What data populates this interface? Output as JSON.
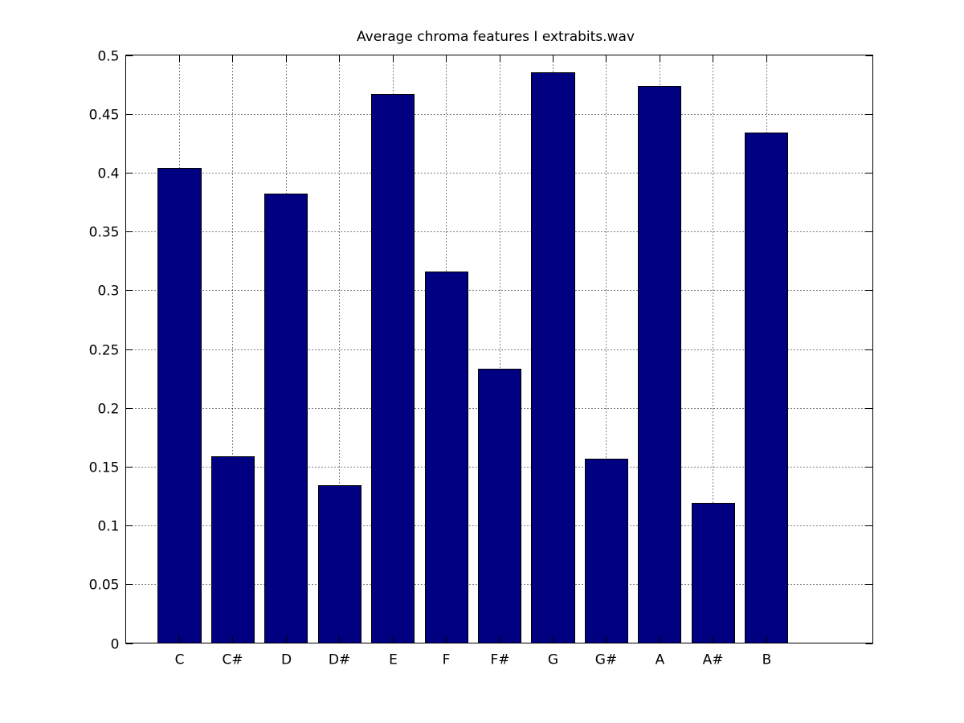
{
  "chart_data": {
    "type": "bar",
    "title": "Average chroma features I extrabits.wav",
    "xlabel": "",
    "ylabel": "",
    "categories": [
      "C",
      "C#",
      "D",
      "D#",
      "E",
      "F",
      "F#",
      "G",
      "G#",
      "A",
      "A#",
      "B"
    ],
    "values": [
      0.404,
      0.159,
      0.382,
      0.134,
      0.467,
      0.316,
      0.233,
      0.485,
      0.157,
      0.474,
      0.119,
      0.434
    ],
    "ylim": [
      0,
      0.5
    ],
    "xlim": [
      0,
      14
    ],
    "yticks": [
      0,
      0.05,
      0.1,
      0.15,
      0.2,
      0.25,
      0.3,
      0.35,
      0.4,
      0.45,
      0.5
    ],
    "ytick_labels": [
      "0",
      "0.05",
      "0.1",
      "0.15",
      "0.2",
      "0.25",
      "0.3",
      "0.35",
      "0.4",
      "0.45",
      "0.5"
    ],
    "bar_color": "#000080",
    "grid": true,
    "legend": "none"
  }
}
